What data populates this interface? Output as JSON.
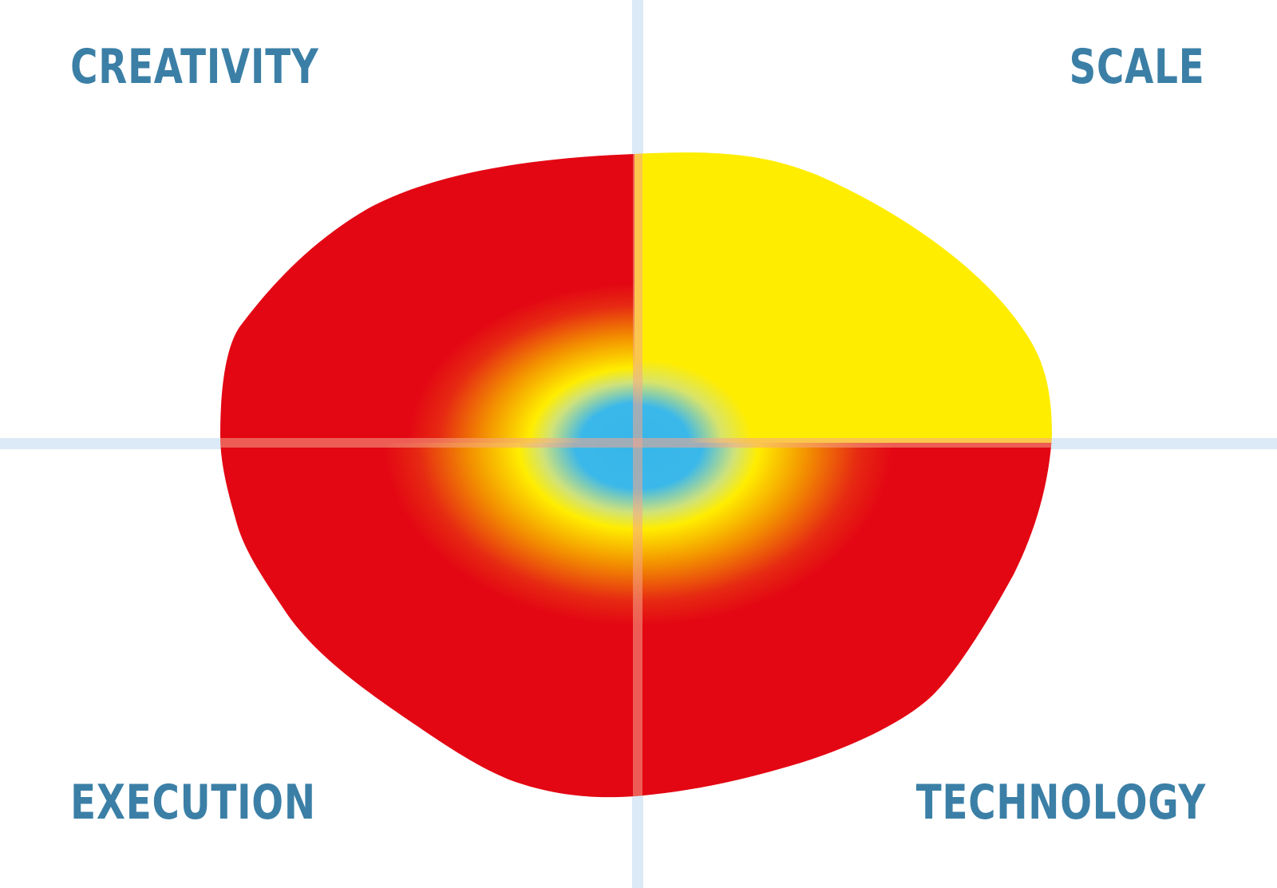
{
  "labels": {
    "top_left": "CREATIVITY",
    "top_right": "SCALE",
    "bottom_left": "EXECUTION",
    "bottom_right": "TECHNOLOGY"
  },
  "colors": {
    "label": "#3b7fa6",
    "axis": "#dce9f6",
    "red": "#e30613",
    "yellow": "#ffed00",
    "orange": "#f39200",
    "blue": "#36b6ea",
    "cross_on_shape": "#f6a58c"
  }
}
